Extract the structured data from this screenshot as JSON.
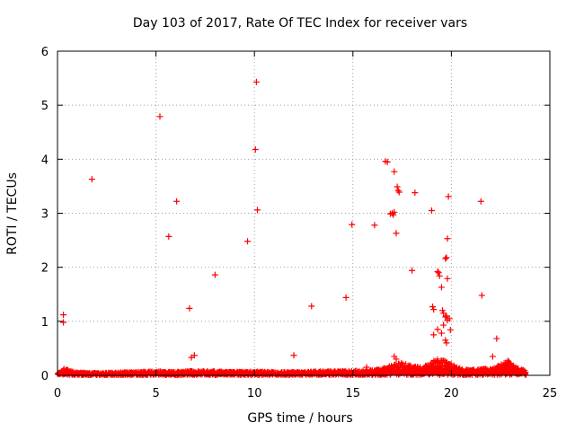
{
  "chart_data": {
    "type": "scatter",
    "title": "Day 103 of 2017, Rate Of TEC Index for receiver vars",
    "xlabel": "GPS time / hours",
    "ylabel": "ROTI / TECUs",
    "xlim": [
      0,
      25
    ],
    "ylim": [
      0,
      6
    ],
    "xticks": [
      0,
      5,
      10,
      15,
      20,
      25
    ],
    "yticks": [
      0,
      1,
      2,
      3,
      4,
      5,
      6
    ],
    "grid": true,
    "grid_style": "dotted",
    "marker": "plus",
    "color": "#ff0000",
    "series": [
      {
        "values_note": "",
        "points": [
          [
            0.3,
            0.98
          ],
          [
            0.3,
            1.12
          ],
          [
            1.75,
            3.63
          ],
          [
            5.2,
            4.79
          ],
          [
            5.65,
            2.57
          ],
          [
            6.05,
            3.22
          ],
          [
            6.7,
            1.24
          ],
          [
            6.8,
            0.33
          ],
          [
            6.95,
            0.37
          ],
          [
            8.0,
            1.86
          ],
          [
            9.65,
            2.48
          ],
          [
            10.05,
            4.18
          ],
          [
            10.1,
            5.43
          ],
          [
            10.15,
            3.06
          ],
          [
            12.0,
            0.37
          ],
          [
            12.9,
            1.28
          ],
          [
            14.65,
            1.44
          ],
          [
            14.95,
            2.79
          ],
          [
            16.1,
            2.78
          ],
          [
            16.65,
            3.96
          ],
          [
            16.75,
            3.95
          ],
          [
            16.9,
            2.99
          ],
          [
            17.0,
            3.0
          ],
          [
            17.05,
            2.97
          ],
          [
            17.1,
            3.02
          ],
          [
            17.1,
            3.77
          ],
          [
            17.25,
            3.49
          ],
          [
            17.3,
            3.42
          ],
          [
            17.35,
            3.39
          ],
          [
            17.2,
            2.63
          ],
          [
            18.0,
            1.94
          ],
          [
            18.15,
            3.38
          ],
          [
            19.0,
            3.05
          ],
          [
            19.05,
            1.27
          ],
          [
            19.1,
            1.22
          ],
          [
            19.3,
            1.92
          ],
          [
            19.35,
            1.9
          ],
          [
            19.4,
            1.84
          ],
          [
            19.5,
            1.63
          ],
          [
            19.55,
            1.2
          ],
          [
            19.6,
            1.15
          ],
          [
            19.7,
            1.08
          ],
          [
            19.75,
            1.1
          ],
          [
            19.8,
            1.02
          ],
          [
            19.6,
            0.93
          ],
          [
            19.7,
            2.16
          ],
          [
            19.75,
            2.18
          ],
          [
            19.8,
            2.53
          ],
          [
            19.85,
            3.31
          ],
          [
            19.8,
            1.79
          ],
          [
            19.9,
            1.05
          ],
          [
            19.95,
            0.84
          ],
          [
            19.7,
            0.65
          ],
          [
            19.75,
            0.6
          ],
          [
            19.1,
            0.75
          ],
          [
            19.3,
            0.85
          ],
          [
            19.5,
            0.78
          ],
          [
            21.5,
            3.22
          ],
          [
            21.55,
            1.48
          ],
          [
            22.3,
            0.68
          ],
          [
            22.1,
            0.35
          ],
          [
            17.1,
            0.35
          ],
          [
            17.2,
            0.3
          ],
          [
            15.7,
            0.15
          ]
        ]
      }
    ]
  },
  "baseline_profile": {
    "description": "",
    "x": [
      0.0,
      0.3,
      0.6,
      1.0,
      2.0,
      3.0,
      4.0,
      5.0,
      6.0,
      7.0,
      8.0,
      9.0,
      10.0,
      11.0,
      12.0,
      13.0,
      14.0,
      15.0,
      16.0,
      16.5,
      17.0,
      17.5,
      18.0,
      18.5,
      19.0,
      19.3,
      19.6,
      20.0,
      20.5,
      21.0,
      21.5,
      22.0,
      22.5,
      22.8,
      23.2,
      23.8
    ],
    "y": [
      0.04,
      0.16,
      0.09,
      0.06,
      0.05,
      0.06,
      0.07,
      0.08,
      0.07,
      0.09,
      0.08,
      0.07,
      0.08,
      0.07,
      0.07,
      0.08,
      0.08,
      0.09,
      0.1,
      0.13,
      0.2,
      0.24,
      0.18,
      0.16,
      0.25,
      0.35,
      0.3,
      0.22,
      0.13,
      0.1,
      0.14,
      0.12,
      0.2,
      0.3,
      0.18,
      0.08
    ]
  }
}
